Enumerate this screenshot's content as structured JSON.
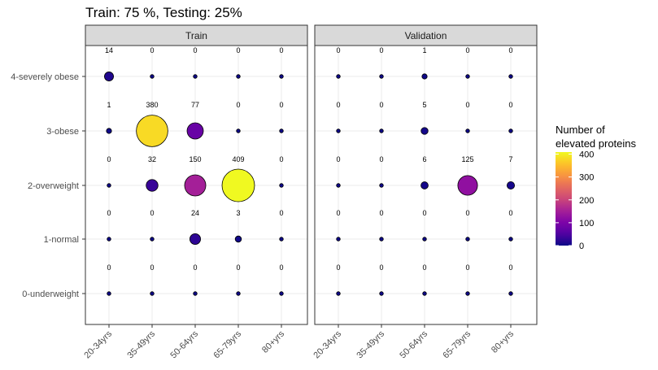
{
  "chart_data": {
    "type": "scatter",
    "title": "Train: 75 %, Testing: 25%",
    "xlabel": "",
    "ylabel": "",
    "categories_x": [
      "20-34yrs",
      "35-49yrs",
      "50-64yrs",
      "65-79yrs",
      "80+yrs"
    ],
    "categories_y": [
      "0-underweight",
      "1-normal",
      "2-overweight",
      "3-obese",
      "4-severely obese"
    ],
    "grid": true,
    "legend": {
      "title_line1": "Number of",
      "title_line2": "elevated proteins",
      "placement": "right",
      "ticks": [
        0,
        100,
        200,
        300,
        400
      ],
      "range": [
        0,
        409
      ],
      "palette": "plasma"
    },
    "panels": [
      {
        "name": "Train",
        "values": [
          [
            0,
            0,
            0,
            0,
            0
          ],
          [
            0,
            0,
            24,
            3,
            0
          ],
          [
            0,
            32,
            150,
            409,
            0
          ],
          [
            1,
            380,
            77,
            0,
            0
          ],
          [
            14,
            0,
            0,
            0,
            0
          ]
        ]
      },
      {
        "name": "Validation",
        "values": [
          [
            0,
            0,
            0,
            0,
            0
          ],
          [
            0,
            0,
            0,
            0,
            0
          ],
          [
            0,
            0,
            6,
            125,
            7
          ],
          [
            0,
            0,
            5,
            0,
            0
          ],
          [
            0,
            0,
            1,
            0,
            0
          ]
        ]
      }
    ]
  }
}
